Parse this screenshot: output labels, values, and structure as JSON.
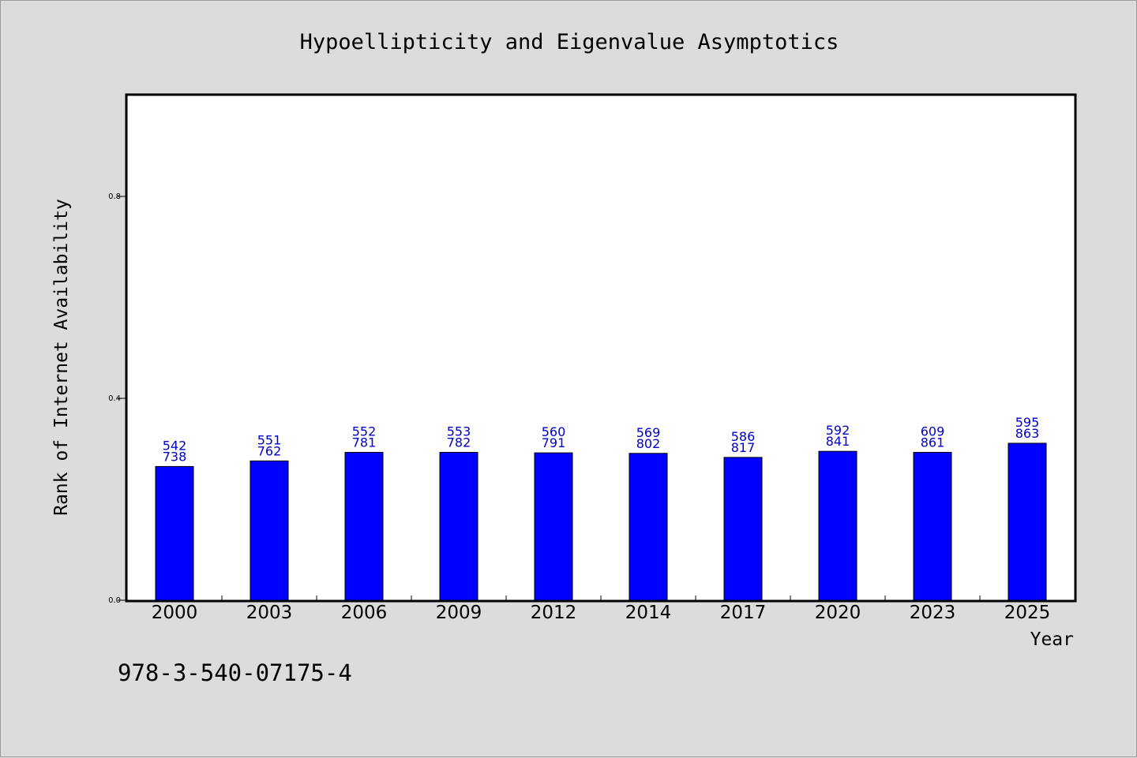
{
  "chart_data": {
    "type": "bar",
    "title": "Hypoellipticity and Eigenvalue Asymptotics",
    "xlabel": "Year",
    "ylabel": "Rank of Internet Availability",
    "categories": [
      "2000",
      "2003",
      "2006",
      "2009",
      "2012",
      "2014",
      "2017",
      "2020",
      "2023",
      "2025"
    ],
    "values": [
      0.265,
      0.276,
      0.293,
      0.293,
      0.292,
      0.291,
      0.283,
      0.295,
      0.293,
      0.311
    ],
    "data_labels": [
      [
        "542",
        "738"
      ],
      [
        "551",
        "762"
      ],
      [
        "552",
        "781"
      ],
      [
        "553",
        "782"
      ],
      [
        "560",
        "791"
      ],
      [
        "569",
        "802"
      ],
      [
        "586",
        "817"
      ],
      [
        "592",
        "841"
      ],
      [
        "609",
        "861"
      ],
      [
        "595",
        "863"
      ]
    ],
    "ylim": [
      0,
      1.0
    ],
    "yticks": [
      "0.0",
      "0.4",
      "0.8"
    ],
    "ytick_values": [
      0,
      0.4,
      0.8
    ],
    "bar_color": "#0000ff",
    "label_color": "#0000cc",
    "grid": false,
    "legend": "none"
  },
  "footnote": "978-3-540-07175-4"
}
